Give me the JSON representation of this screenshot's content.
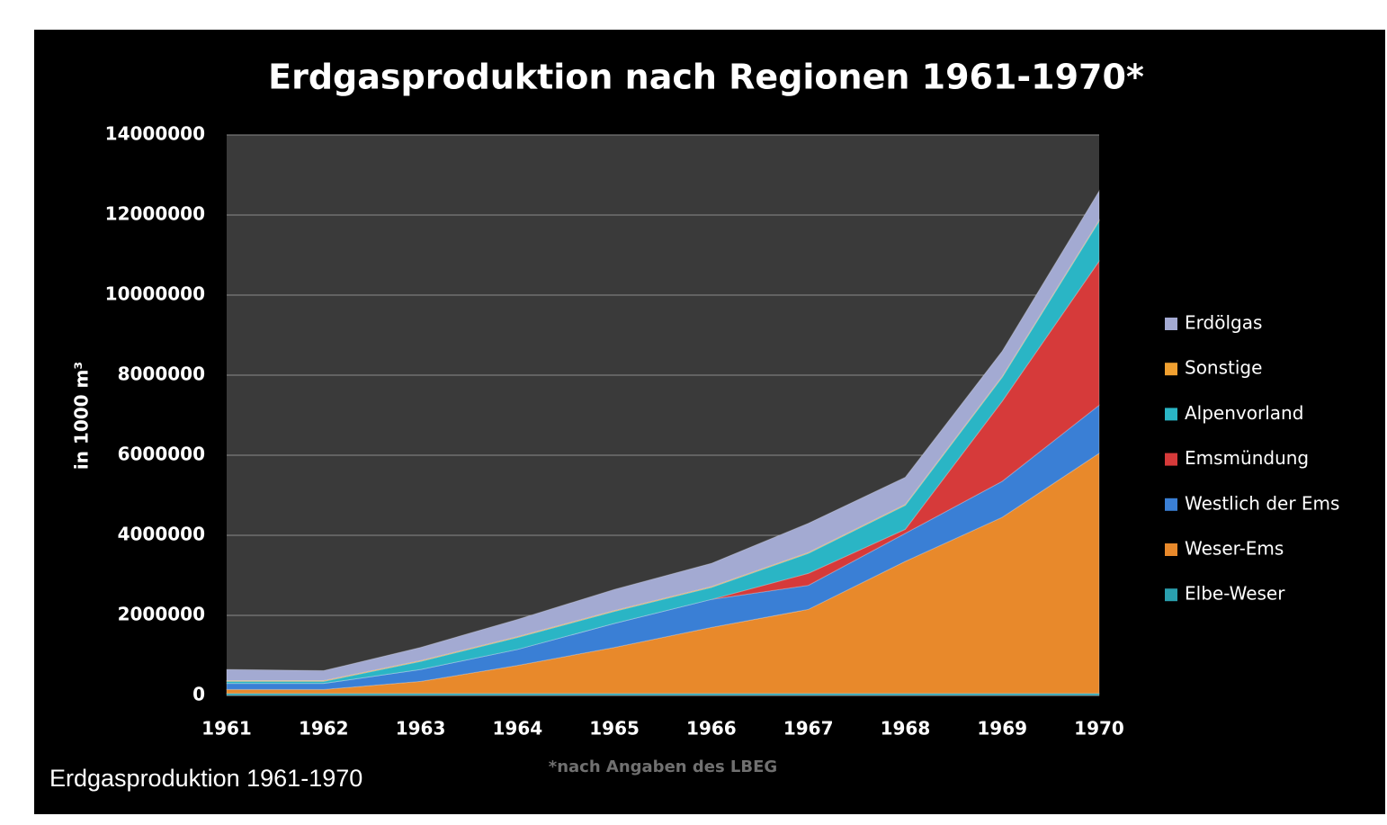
{
  "caption": "Erdgasproduktion 1961-1970",
  "chart_data": {
    "type": "stacked-area",
    "title": "Erdgasproduktion nach Regionen 1961-1970*",
    "y_label": "in 1000 m³",
    "footnote": "*nach Angaben des LBEG",
    "categories": [
      "1961",
      "1962",
      "1963",
      "1964",
      "1965",
      "1966",
      "1967",
      "1968",
      "1969",
      "1970"
    ],
    "ylim": [
      0,
      14000000
    ],
    "yticks": [
      0,
      2000000,
      4000000,
      6000000,
      8000000,
      10000000,
      12000000,
      14000000
    ],
    "grid": true,
    "legend": "right",
    "series": [
      {
        "name": "Elbe-Weser",
        "color": "#2a9fae",
        "values": [
          50000,
          50000,
          50000,
          50000,
          50000,
          50000,
          50000,
          50000,
          50000,
          50000
        ]
      },
      {
        "name": "Weser-Ems",
        "color": "#e8892b",
        "values": [
          100000,
          100000,
          300000,
          700000,
          1150000,
          1650000,
          2100000,
          3300000,
          4400000,
          6000000
        ]
      },
      {
        "name": "Westlich der Ems",
        "color": "#3a7fd5",
        "values": [
          150000,
          150000,
          300000,
          400000,
          600000,
          700000,
          600000,
          700000,
          900000,
          1200000
        ]
      },
      {
        "name": "Emsmündung",
        "color": "#d63a3a",
        "values": [
          0,
          0,
          0,
          0,
          0,
          0,
          300000,
          100000,
          2000000,
          3600000
        ]
      },
      {
        "name": "Alpenvorland",
        "color": "#2ab5c5",
        "values": [
          50000,
          50000,
          200000,
          300000,
          300000,
          300000,
          500000,
          600000,
          600000,
          1000000
        ]
      },
      {
        "name": "Sonstige",
        "color": "#f0a030",
        "values": [
          20000,
          20000,
          20000,
          20000,
          20000,
          20000,
          20000,
          20000,
          20000,
          20000
        ]
      },
      {
        "name": "Erdölgas",
        "color": "#a3aad2",
        "values": [
          280000,
          250000,
          330000,
          430000,
          530000,
          580000,
          730000,
          680000,
          630000,
          730000
        ]
      }
    ]
  }
}
